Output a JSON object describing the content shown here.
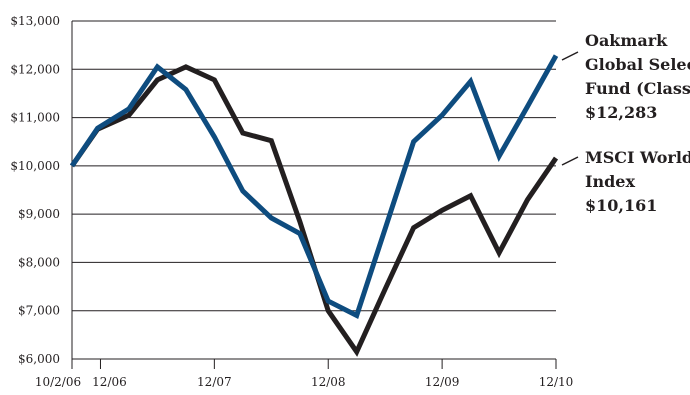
{
  "chart_data": {
    "type": "line",
    "title": "",
    "xlabel": "",
    "ylabel": "",
    "ylim": [
      6000,
      13000
    ],
    "y_ticks": [
      {
        "value": 6000,
        "label": "$6,000"
      },
      {
        "value": 7000,
        "label": "$7,000"
      },
      {
        "value": 8000,
        "label": "$8,000"
      },
      {
        "value": 9000,
        "label": "$9,000"
      },
      {
        "value": 10000,
        "label": "$10,000"
      },
      {
        "value": 11000,
        "label": "$11,000"
      },
      {
        "value": 12000,
        "label": "$12,000"
      },
      {
        "value": 13000,
        "label": "$13,000"
      }
    ],
    "x_ticks": [
      {
        "value": 0,
        "label": "10/2/06"
      },
      {
        "value": 1,
        "label": "12/06"
      },
      {
        "value": 5,
        "label": "12/07"
      },
      {
        "value": 9,
        "label": "12/08"
      },
      {
        "value": 13,
        "label": "12/09"
      },
      {
        "value": 17,
        "label": "12/10"
      }
    ],
    "x": [
      0,
      0.9,
      2,
      3,
      4,
      5,
      6,
      7,
      8,
      9,
      10,
      11,
      12,
      13,
      14,
      15,
      16,
      17
    ],
    "x_period": "quarterly, 10/2/06 to 12/10",
    "grid": "horizontal",
    "legend_position": "right",
    "series": [
      {
        "name_lines": [
          "Oakmark",
          "Global Select",
          "Fund (Class I)"
        ],
        "ending_value_label": "$12,283",
        "color": "#0e4c7f",
        "values": [
          10000,
          10780,
          11180,
          12050,
          11580,
          10600,
          9480,
          8920,
          8600,
          7200,
          6900,
          8700,
          10500,
          11050,
          11750,
          10200,
          11230,
          12283
        ]
      },
      {
        "name_lines": [
          "MSCI World",
          "Index"
        ],
        "ending_value_label": "$10,161",
        "color": "#231f20",
        "values": [
          10000,
          10760,
          11050,
          11780,
          12050,
          11780,
          10680,
          10520,
          8850,
          7000,
          6150,
          7450,
          8720,
          9080,
          9380,
          8200,
          9300,
          10161
        ]
      }
    ]
  }
}
